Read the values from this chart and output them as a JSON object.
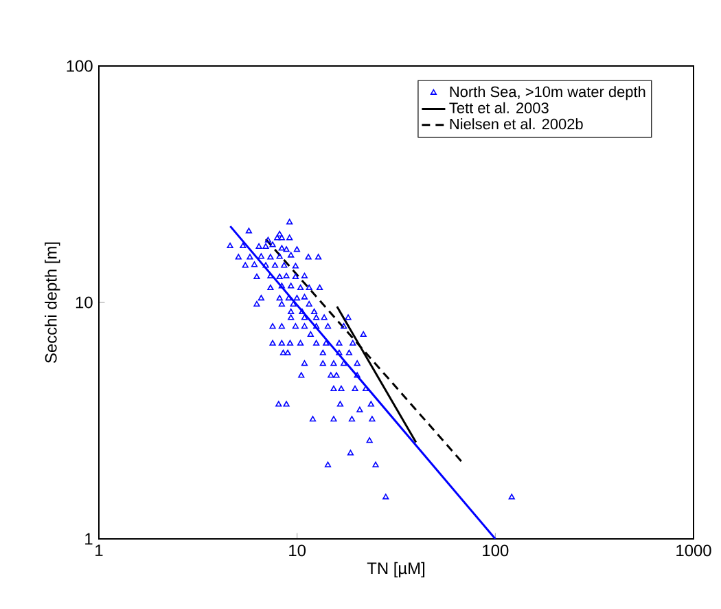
{
  "chart_data": {
    "type": "scatter",
    "xlabel": "TN [µM]",
    "ylabel": "Secchi depth [m]",
    "log": "xy",
    "xlim": [
      1,
      1000
    ],
    "ylim": [
      1,
      100
    ],
    "xticks": [
      1,
      10,
      100,
      1000
    ],
    "yticks": [
      1,
      10,
      100
    ],
    "legend": "top right",
    "marker": "triangle",
    "series": [
      {
        "name": "North Sea, >10m water depth",
        "color": "#0000ff",
        "x": [
          9.16,
          5.71,
          8.16,
          7.94,
          8.37,
          9.16,
          7.14,
          4.59,
          5.33,
          6.42,
          6.95,
          7.53,
          8.37,
          8.83,
          9.98,
          5.06,
          5.78,
          6.59,
          7.34,
          8.16,
          9.31,
          11.4,
          12.8,
          5.48,
          6.09,
          6.95,
          7.74,
          8.6,
          9.82,
          6.26,
          7.34,
          8.16,
          8.83,
          9.82,
          10.9,
          7.34,
          8.37,
          9.31,
          10.4,
          11.5,
          13.0,
          6.59,
          8.16,
          9.07,
          9.98,
          10.9,
          6.26,
          8.37,
          9.57,
          11.5,
          9.31,
          10.6,
          12.2,
          9.31,
          10.9,
          12.5,
          13.7,
          18.1,
          7.53,
          8.37,
          9.82,
          10.9,
          12.5,
          14.3,
          17.2,
          11.7,
          21.6,
          7.53,
          8.37,
          9.22,
          10.4,
          12.5,
          14.0,
          16.3,
          19.1,
          8.51,
          8.97,
          13.5,
          16.3,
          18.3,
          10.9,
          13.5,
          15.3,
          17.2,
          20.1,
          10.5,
          14.8,
          15.8,
          20.1,
          15.3,
          16.7,
          19.6,
          22.2,
          8.07,
          8.83,
          16.5,
          23.6,
          20.7,
          12.0,
          15.3,
          18.9,
          23.9,
          23.2,
          18.6,
          14.3,
          24.9,
          28,
          121
        ],
        "values": [
          21.8,
          20.0,
          19.4,
          18.7,
          18.7,
          18.7,
          18.3,
          17.3,
          17.3,
          17.2,
          17.2,
          17.5,
          16.9,
          16.7,
          16.7,
          15.5,
          15.5,
          15.6,
          15.5,
          15.6,
          15.8,
          15.5,
          15.5,
          14.3,
          14.4,
          14.3,
          14.3,
          14.3,
          14.2,
          12.8,
          12.9,
          12.8,
          12.9,
          12.8,
          12.9,
          11.5,
          11.7,
          11.7,
          11.5,
          11.5,
          11.5,
          10.4,
          10.4,
          10.4,
          10.4,
          10.5,
          9.8,
          9.8,
          9.8,
          9.8,
          9.1,
          9.1,
          9.1,
          8.6,
          8.6,
          8.6,
          8.6,
          8.6,
          7.9,
          7.9,
          7.9,
          7.9,
          7.9,
          7.9,
          7.9,
          7.3,
          7.3,
          6.7,
          6.7,
          6.7,
          6.7,
          6.7,
          6.7,
          6.7,
          6.7,
          6.1,
          6.1,
          6.1,
          6.1,
          6.1,
          5.5,
          5.5,
          5.5,
          5.5,
          5.5,
          4.9,
          4.9,
          4.9,
          4.9,
          4.3,
          4.3,
          4.3,
          4.3,
          3.7,
          3.7,
          3.7,
          3.7,
          3.5,
          3.2,
          3.2,
          3.2,
          3.2,
          2.6,
          2.3,
          2.05,
          2.05,
          1.5,
          1.5
        ]
      },
      {
        "type": "line",
        "color": "#0000ff",
        "marker": "none",
        "line_style": "solid",
        "x": [
          4.6,
          100
        ],
        "values": [
          21,
          1
        ]
      },
      {
        "type": "line",
        "name": "Tett et al. 2003",
        "color": "#000000",
        "marker": "none",
        "line_style": "solid",
        "x": [
          15.9,
          39.8
        ],
        "values": [
          9.6,
          2.56
        ]
      },
      {
        "type": "line",
        "name": "Nielsen et al. 2002b",
        "color": "#000000",
        "marker": "none",
        "line_style": "dashed",
        "x": [
          6.95,
          68.4
        ],
        "values": [
          18.5,
          2.1
        ]
      }
    ]
  }
}
